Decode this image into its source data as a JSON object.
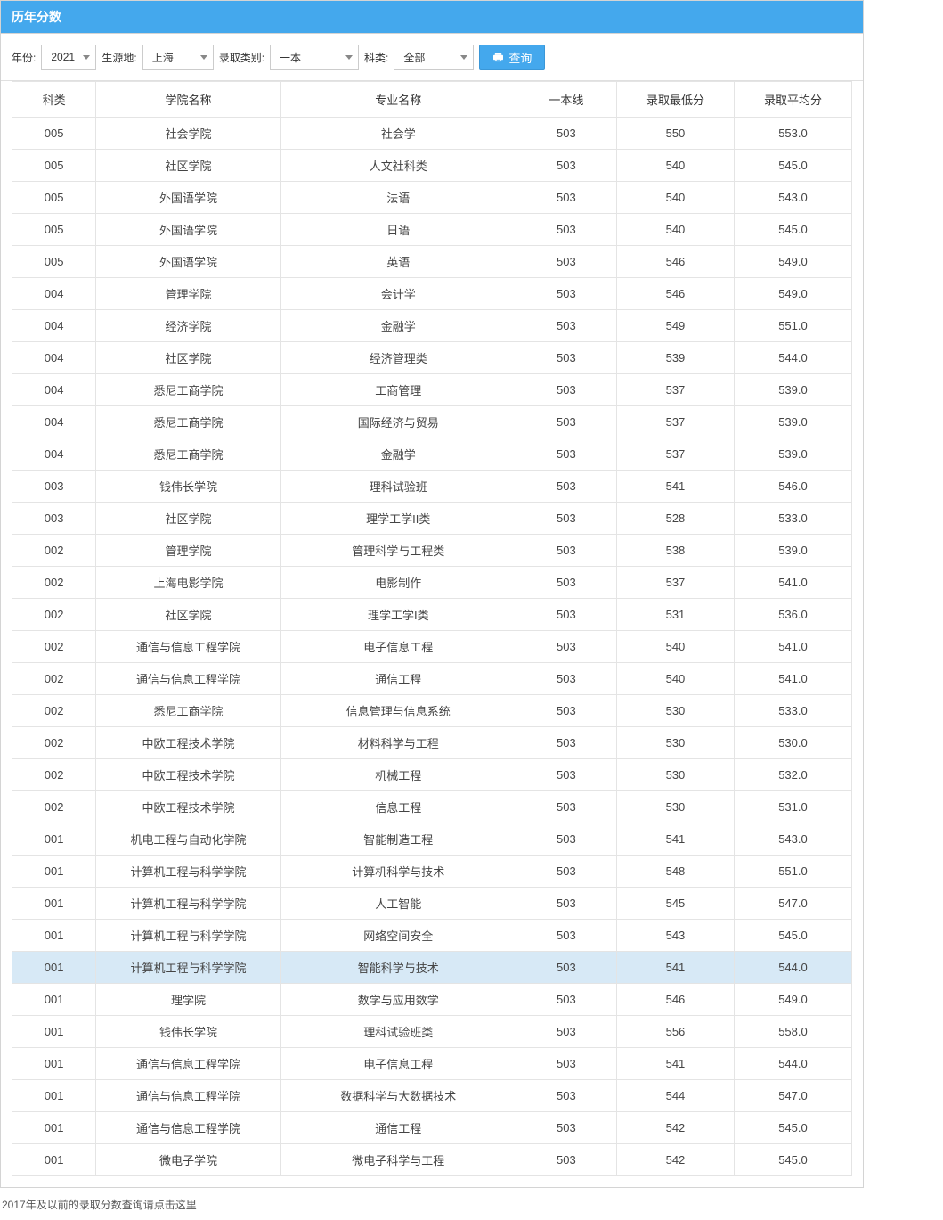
{
  "title": "历年分数",
  "filters": {
    "year_label": "年份:",
    "year_value": "2021",
    "region_label": "生源地:",
    "region_value": "上海",
    "type_label": "录取类别:",
    "type_value": "一本",
    "subject_label": "科类:",
    "subject_value": "全部",
    "query_label": "查询"
  },
  "columns": [
    "科类",
    "学院名称",
    "专业名称",
    "一本线",
    "录取最低分",
    "录取平均分"
  ],
  "highlight_index": 27,
  "rows": [
    [
      "005",
      "社会学院",
      "社会学",
      "503",
      "550",
      "553.0"
    ],
    [
      "005",
      "社区学院",
      "人文社科类",
      "503",
      "540",
      "545.0"
    ],
    [
      "005",
      "外国语学院",
      "法语",
      "503",
      "540",
      "543.0"
    ],
    [
      "005",
      "外国语学院",
      "日语",
      "503",
      "540",
      "545.0"
    ],
    [
      "005",
      "外国语学院",
      "英语",
      "503",
      "546",
      "549.0"
    ],
    [
      "004",
      "管理学院",
      "会计学",
      "503",
      "546",
      "549.0"
    ],
    [
      "004",
      "经济学院",
      "金融学",
      "503",
      "549",
      "551.0"
    ],
    [
      "004",
      "社区学院",
      "经济管理类",
      "503",
      "539",
      "544.0"
    ],
    [
      "004",
      "悉尼工商学院",
      "工商管理",
      "503",
      "537",
      "539.0"
    ],
    [
      "004",
      "悉尼工商学院",
      "国际经济与贸易",
      "503",
      "537",
      "539.0"
    ],
    [
      "004",
      "悉尼工商学院",
      "金融学",
      "503",
      "537",
      "539.0"
    ],
    [
      "003",
      "钱伟长学院",
      "理科试验班",
      "503",
      "541",
      "546.0"
    ],
    [
      "003",
      "社区学院",
      "理学工学II类",
      "503",
      "528",
      "533.0"
    ],
    [
      "002",
      "管理学院",
      "管理科学与工程类",
      "503",
      "538",
      "539.0"
    ],
    [
      "002",
      "上海电影学院",
      "电影制作",
      "503",
      "537",
      "541.0"
    ],
    [
      "002",
      "社区学院",
      "理学工学I类",
      "503",
      "531",
      "536.0"
    ],
    [
      "002",
      "通信与信息工程学院",
      "电子信息工程",
      "503",
      "540",
      "541.0"
    ],
    [
      "002",
      "通信与信息工程学院",
      "通信工程",
      "503",
      "540",
      "541.0"
    ],
    [
      "002",
      "悉尼工商学院",
      "信息管理与信息系统",
      "503",
      "530",
      "533.0"
    ],
    [
      "002",
      "中欧工程技术学院",
      "材料科学与工程",
      "503",
      "530",
      "530.0"
    ],
    [
      "002",
      "中欧工程技术学院",
      "机械工程",
      "503",
      "530",
      "532.0"
    ],
    [
      "002",
      "中欧工程技术学院",
      "信息工程",
      "503",
      "530",
      "531.0"
    ],
    [
      "001",
      "机电工程与自动化学院",
      "智能制造工程",
      "503",
      "541",
      "543.0"
    ],
    [
      "001",
      "计算机工程与科学学院",
      "计算机科学与技术",
      "503",
      "548",
      "551.0"
    ],
    [
      "001",
      "计算机工程与科学学院",
      "人工智能",
      "503",
      "545",
      "547.0"
    ],
    [
      "001",
      "计算机工程与科学学院",
      "网络空间安全",
      "503",
      "543",
      "545.0"
    ],
    [
      "001",
      "计算机工程与科学学院",
      "智能科学与技术",
      "503",
      "541",
      "544.0"
    ],
    [
      "001",
      "理学院",
      "数学与应用数学",
      "503",
      "546",
      "549.0"
    ],
    [
      "001",
      "钱伟长学院",
      "理科试验班类",
      "503",
      "556",
      "558.0"
    ],
    [
      "001",
      "通信与信息工程学院",
      "电子信息工程",
      "503",
      "541",
      "544.0"
    ],
    [
      "001",
      "通信与信息工程学院",
      "数据科学与大数据技术",
      "503",
      "544",
      "547.0"
    ],
    [
      "001",
      "通信与信息工程学院",
      "通信工程",
      "503",
      "542",
      "545.0"
    ],
    [
      "001",
      "微电子学院",
      "微电子科学与工程",
      "503",
      "542",
      "545.0"
    ]
  ],
  "footer_note": "2017年及以前的录取分数查询请点击这里"
}
